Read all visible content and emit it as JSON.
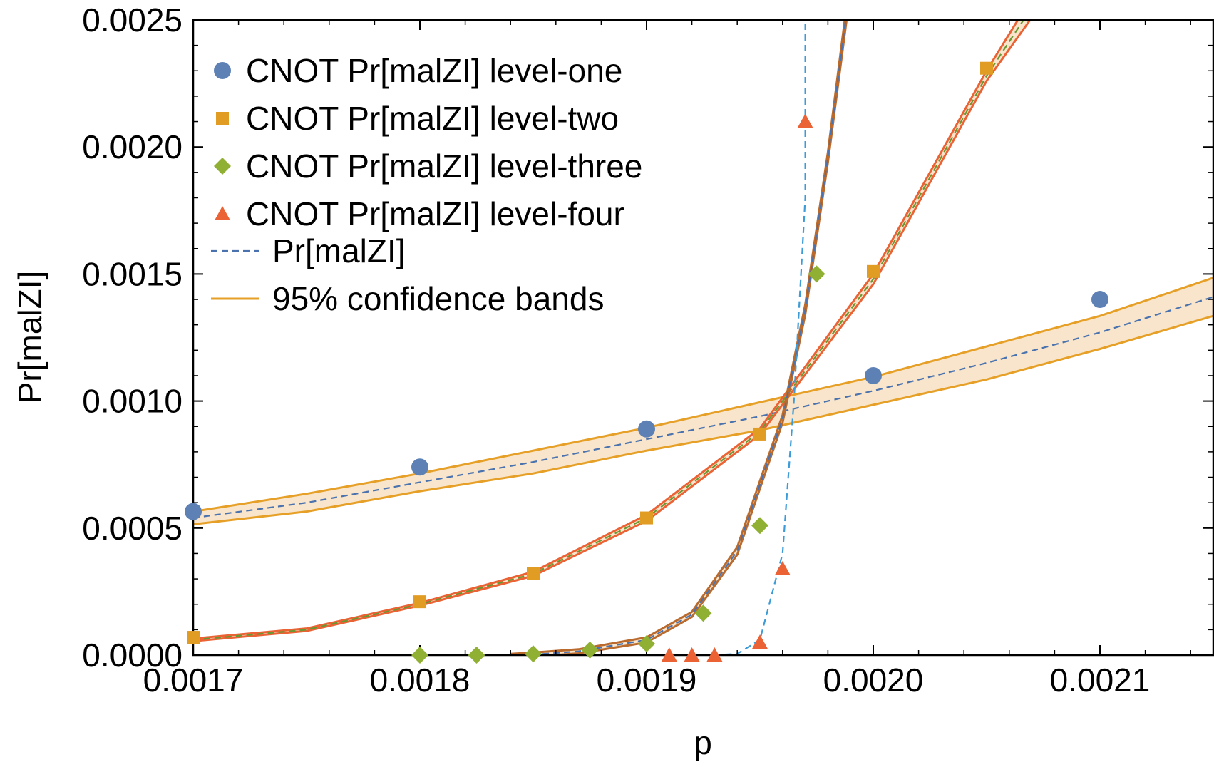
{
  "chart_data": {
    "type": "scatter",
    "title": "",
    "xlabel": "p",
    "ylabel": "Pr[malZI]",
    "xlim": [
      0.0017,
      0.00215
    ],
    "ylim": [
      0.0,
      0.0025
    ],
    "x_ticks": [
      {
        "value": 0.0017,
        "label": "0.0017"
      },
      {
        "value": 0.0018,
        "label": "0.0018"
      },
      {
        "value": 0.0019,
        "label": "0.0019"
      },
      {
        "value": 0.002,
        "label": "0.0020"
      },
      {
        "value": 0.0021,
        "label": "0.0021"
      }
    ],
    "y_ticks": [
      {
        "value": 0.0,
        "label": "0.0000"
      },
      {
        "value": 0.0005,
        "label": "0.0005"
      },
      {
        "value": 0.001,
        "label": "0.0010"
      },
      {
        "value": 0.0015,
        "label": "0.0015"
      },
      {
        "value": 0.002,
        "label": "0.0020"
      },
      {
        "value": 0.0025,
        "label": "0.0025"
      }
    ],
    "series": [
      {
        "name": "CNOT Pr[malZI] level-one",
        "marker": "circle",
        "color": "#5E81B5",
        "x": [
          0.0017,
          0.0018,
          0.0019,
          0.002,
          0.0021
        ],
        "y": [
          0.000565,
          0.00074,
          0.00089,
          0.0011,
          0.0014
        ]
      },
      {
        "name": "CNOT Pr[malZI] level-two",
        "marker": "square",
        "color": "#E19C24",
        "x": [
          0.0017,
          0.0018,
          0.00185,
          0.0019,
          0.00195,
          0.002,
          0.00205
        ],
        "y": [
          7e-05,
          0.00021,
          0.00032,
          0.00054,
          0.00087,
          0.00151,
          0.00231
        ]
      },
      {
        "name": "CNOT Pr[malZI] level-three",
        "marker": "diamond",
        "color": "#8FB032",
        "x": [
          0.0018,
          0.001825,
          0.00185,
          0.001875,
          0.0019,
          0.001925,
          0.00195,
          0.001975
        ],
        "y": [
          0.0,
          0.0,
          5e-06,
          2e-05,
          4.5e-05,
          0.000165,
          0.00051,
          0.0015
        ]
      },
      {
        "name": "CNOT Pr[malZI] level-four",
        "marker": "triangle",
        "color": "#EB6235",
        "x": [
          0.00191,
          0.00192,
          0.00193,
          0.00195,
          0.00196,
          0.00197
        ],
        "y": [
          0.0,
          0.0,
          0.0,
          5e-05,
          0.00034,
          0.0021
        ]
      }
    ],
    "fits": [
      {
        "name": "level-one fit",
        "color": "#4A72AE",
        "band_color": "#E6A027",
        "points": [
          [
            0.0017,
            0.00054
          ],
          [
            0.00175,
            0.0006
          ],
          [
            0.0018,
            0.00068
          ],
          [
            0.00185,
            0.00076
          ],
          [
            0.0019,
            0.00085
          ],
          [
            0.00195,
            0.00094
          ],
          [
            0.002,
            0.00104
          ],
          [
            0.00205,
            0.00115
          ],
          [
            0.0021,
            0.00127
          ],
          [
            0.00215,
            0.00141
          ]
        ],
        "band": [
          2.5e-05,
          3.5e-05,
          4.5e-05,
          5.5e-05,
          6.5e-05,
          7.5e-05
        ]
      },
      {
        "name": "level-two fit",
        "color": "#6B9731",
        "band_color": "#EB6235",
        "points": [
          [
            0.0017,
            6e-05
          ],
          [
            0.00175,
            0.0001
          ],
          [
            0.0018,
            0.0002
          ],
          [
            0.00185,
            0.00032
          ],
          [
            0.0019,
            0.00054
          ],
          [
            0.00195,
            0.00088
          ],
          [
            0.002,
            0.00148
          ],
          [
            0.00205,
            0.00228
          ],
          [
            0.00207,
            0.00255
          ]
        ],
        "band": [
          5e-06,
          5e-06,
          8e-06,
          1.2e-05,
          2e-05,
          4e-05
        ]
      },
      {
        "name": "level-three fit",
        "color": "#4A72AE",
        "band_color": "#B96A2C",
        "points": [
          [
            0.00184,
            0.0
          ],
          [
            0.00185,
            2e-06
          ],
          [
            0.00187,
            1.5e-05
          ],
          [
            0.0019,
            6e-05
          ],
          [
            0.00192,
            0.00016
          ],
          [
            0.00194,
            0.00041
          ],
          [
            0.00196,
            0.00093
          ],
          [
            0.00197,
            0.00136
          ],
          [
            0.00198,
            0.00196
          ],
          [
            0.00199,
            0.00265
          ]
        ],
        "band": [
          5e-06,
          8e-06,
          1e-05,
          1.5e-05,
          2e-05,
          3e-05
        ]
      },
      {
        "name": "level-four fit",
        "color": "#3D9CD8",
        "band_color": "",
        "points": [
          [
            0.00193,
            0.0
          ],
          [
            0.00194,
            5e-06
          ],
          [
            0.00195,
            6e-05
          ],
          [
            0.00196,
            0.0004
          ],
          [
            0.001965,
            0.001
          ],
          [
            0.00197,
            0.0018
          ],
          [
            0.00197,
            0.0025
          ]
        ],
        "band": []
      }
    ],
    "legend": {
      "placement": "top-left",
      "entries": [
        {
          "label": "CNOT Pr[malZI] level-one",
          "kind": "circle",
          "color": "#5E81B5"
        },
        {
          "label": "CNOT Pr[malZI] level-two",
          "kind": "square",
          "color": "#E19C24"
        },
        {
          "label": "CNOT Pr[malZI] level-three",
          "kind": "diamond",
          "color": "#8FB032"
        },
        {
          "label": "CNOT Pr[malZI] level-four",
          "kind": "triangle",
          "color": "#EB6235"
        },
        {
          "label": "Pr[malZI]",
          "kind": "dashed",
          "color": "#4A72AE"
        },
        {
          "label": "95% confidence bands",
          "kind": "solid",
          "color": "#E6A027"
        }
      ]
    }
  }
}
